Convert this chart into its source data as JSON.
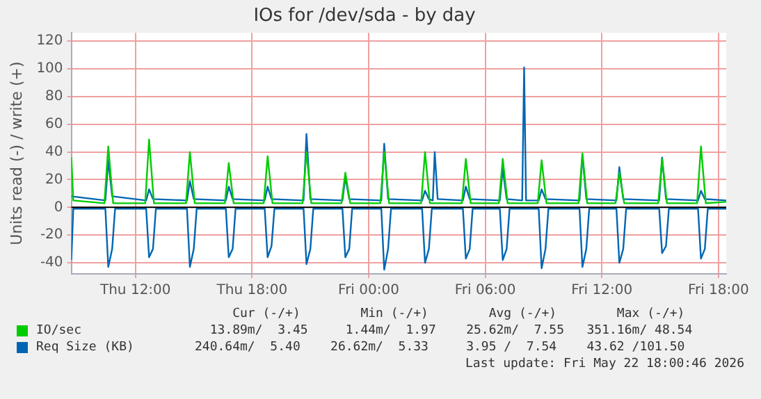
{
  "chart_data": {
    "type": "line",
    "title": "IOs for /dev/sda - by day",
    "ylabel": "Units read (-) / write (+)",
    "xlim": [
      "2026-05-21T08:42",
      "2026-05-22T18:24"
    ],
    "xticks": [
      {
        "value": "2026-05-21T12:00",
        "label": "Thu 12:00"
      },
      {
        "value": "2026-05-21T18:00",
        "label": "Thu 18:00"
      },
      {
        "value": "2026-05-22T00:00",
        "label": "Fri 00:00"
      },
      {
        "value": "2026-05-22T06:00",
        "label": "Fri 06:00"
      },
      {
        "value": "2026-05-22T12:00",
        "label": "Fri 12:00"
      },
      {
        "value": "2026-05-22T18:00",
        "label": "Fri 18:00"
      }
    ],
    "ylim": [
      -48,
      126
    ],
    "yticks": [
      -40,
      -20,
      0,
      20,
      40,
      60,
      80,
      100,
      120
    ],
    "grid": true,
    "legend": "bottom",
    "marker": "none",
    "line_style": "solid",
    "ref_lines": [
      {
        "axis": "y",
        "value": 0,
        "color": "#000000"
      }
    ],
    "series": [
      {
        "name": "IO/sec",
        "color": "#00cc00",
        "x": [
          "2026-05-21T08:42",
          "2026-05-21T08:48",
          "2026-05-21T10:24",
          "2026-05-21T10:36",
          "2026-05-21T10:51",
          "2026-05-21T12:30",
          "2026-05-21T12:42",
          "2026-05-21T12:57",
          "2026-05-21T14:36",
          "2026-05-21T14:48",
          "2026-05-21T15:03",
          "2026-05-21T16:36",
          "2026-05-21T16:48",
          "2026-05-21T17:03",
          "2026-05-21T18:36",
          "2026-05-21T18:48",
          "2026-05-21T19:03",
          "2026-05-21T20:36",
          "2026-05-21T20:48",
          "2026-05-21T21:03",
          "2026-05-21T22:36",
          "2026-05-21T22:48",
          "2026-05-21T23:03",
          "2026-05-22T00:36",
          "2026-05-22T00:48",
          "2026-05-22T01:03",
          "2026-05-22T02:42",
          "2026-05-22T02:54",
          "2026-05-22T03:09",
          "2026-05-22T04:48",
          "2026-05-22T05:00",
          "2026-05-22T05:15",
          "2026-05-22T06:42",
          "2026-05-22T06:54",
          "2026-05-22T07:09",
          "2026-05-22T08:42",
          "2026-05-22T08:54",
          "2026-05-22T09:09",
          "2026-05-22T10:48",
          "2026-05-22T11:00",
          "2026-05-22T11:15",
          "2026-05-22T12:42",
          "2026-05-22T12:54",
          "2026-05-22T13:09",
          "2026-05-22T14:54",
          "2026-05-22T15:06",
          "2026-05-22T15:21",
          "2026-05-22T16:54",
          "2026-05-22T17:06",
          "2026-05-22T17:21",
          "2026-05-22T18:24"
        ],
        "values": [
          36,
          5,
          3,
          44,
          3,
          3,
          49,
          3,
          3,
          40,
          3,
          3,
          32,
          3,
          3,
          37,
          3,
          3,
          40,
          3,
          3,
          25,
          3,
          3,
          40,
          3,
          3,
          40,
          3,
          3,
          35,
          3,
          3,
          35,
          3,
          3,
          34,
          3,
          3,
          39,
          3,
          3,
          25,
          3,
          3,
          35,
          3,
          3,
          44,
          3,
          4
        ]
      },
      {
        "name": "Req Size (KB)",
        "color": "#0066b3",
        "x": [
          "2026-05-21T08:42",
          "2026-05-21T10:27",
          "2026-05-21T10:36",
          "2026-05-21T10:48",
          "2026-05-21T12:33",
          "2026-05-21T12:42",
          "2026-05-21T12:54",
          "2026-05-21T14:39",
          "2026-05-21T14:48",
          "2026-05-21T15:00",
          "2026-05-21T16:39",
          "2026-05-21T16:48",
          "2026-05-21T17:00",
          "2026-05-21T18:39",
          "2026-05-21T18:48",
          "2026-05-21T19:00",
          "2026-05-21T20:39",
          "2026-05-21T20:48",
          "2026-05-21T21:00",
          "2026-05-21T22:39",
          "2026-05-21T22:48",
          "2026-05-21T23:00",
          "2026-05-22T00:39",
          "2026-05-22T00:48",
          "2026-05-22T01:00",
          "2026-05-22T02:45",
          "2026-05-22T02:54",
          "2026-05-22T03:06",
          "2026-05-22T03:18",
          "2026-05-22T03:24",
          "2026-05-22T03:33",
          "2026-05-22T04:51",
          "2026-05-22T05:00",
          "2026-05-22T05:12",
          "2026-05-22T06:45",
          "2026-05-22T06:54",
          "2026-05-22T07:06",
          "2026-05-22T07:54",
          "2026-05-22T08:00",
          "2026-05-22T08:06",
          "2026-05-22T08:45",
          "2026-05-22T08:54",
          "2026-05-22T09:06",
          "2026-05-22T10:51",
          "2026-05-22T11:00",
          "2026-05-22T11:12",
          "2026-05-22T12:45",
          "2026-05-22T12:54",
          "2026-05-22T13:06",
          "2026-05-22T14:57",
          "2026-05-22T15:06",
          "2026-05-22T15:18",
          "2026-05-22T16:57",
          "2026-05-22T17:06",
          "2026-05-22T17:18",
          "2026-05-22T18:24"
        ],
        "values": [
          8,
          5,
          34,
          8,
          5,
          13,
          6,
          5,
          19,
          6,
          5,
          15,
          6,
          5,
          15,
          6,
          5,
          53,
          6,
          5,
          22,
          6,
          5,
          46,
          6,
          5,
          12,
          6,
          5,
          40,
          6,
          5,
          15,
          6,
          5,
          28,
          6,
          5,
          101,
          5,
          5,
          13,
          6,
          5,
          38,
          6,
          5,
          29,
          6,
          5,
          36,
          6,
          5,
          12,
          6,
          5
        ]
      },
      {
        "color": "#0066b3",
        "x": [
          "2026-05-21T08:42",
          "2026-05-21T08:48",
          "2026-05-21T10:27",
          "2026-05-21T10:36",
          "2026-05-21T10:48",
          "2026-05-21T10:57",
          "2026-05-21T12:33",
          "2026-05-21T12:42",
          "2026-05-21T12:54",
          "2026-05-21T13:03",
          "2026-05-21T14:39",
          "2026-05-21T14:48",
          "2026-05-21T15:00",
          "2026-05-21T15:09",
          "2026-05-21T16:39",
          "2026-05-21T16:48",
          "2026-05-21T17:00",
          "2026-05-21T17:09",
          "2026-05-21T18:39",
          "2026-05-21T18:48",
          "2026-05-21T19:00",
          "2026-05-21T19:09",
          "2026-05-21T20:39",
          "2026-05-21T20:48",
          "2026-05-21T21:00",
          "2026-05-21T21:09",
          "2026-05-21T22:39",
          "2026-05-21T22:48",
          "2026-05-21T23:00",
          "2026-05-21T23:09",
          "2026-05-22T00:39",
          "2026-05-22T00:48",
          "2026-05-22T01:00",
          "2026-05-22T01:09",
          "2026-05-22T02:45",
          "2026-05-22T02:54",
          "2026-05-22T03:06",
          "2026-05-22T03:15",
          "2026-05-22T04:51",
          "2026-05-22T05:00",
          "2026-05-22T05:12",
          "2026-05-22T05:21",
          "2026-05-22T06:45",
          "2026-05-22T06:54",
          "2026-05-22T07:06",
          "2026-05-22T07:15",
          "2026-05-22T08:45",
          "2026-05-22T08:54",
          "2026-05-22T09:06",
          "2026-05-22T09:15",
          "2026-05-22T10:51",
          "2026-05-22T11:00",
          "2026-05-22T11:12",
          "2026-05-22T11:21",
          "2026-05-22T12:45",
          "2026-05-22T12:54",
          "2026-05-22T13:06",
          "2026-05-22T13:15",
          "2026-05-22T14:57",
          "2026-05-22T15:06",
          "2026-05-22T15:18",
          "2026-05-22T15:27",
          "2026-05-22T16:57",
          "2026-05-22T17:06",
          "2026-05-22T17:18",
          "2026-05-22T17:27",
          "2026-05-22T18:24"
        ],
        "values": [
          -38,
          -1,
          -1,
          -43,
          -30,
          -1,
          -1,
          -36,
          -30,
          -1,
          -1,
          -43,
          -30,
          -1,
          -1,
          -36,
          -30,
          -1,
          -1,
          -36,
          -28,
          -1,
          -1,
          -41,
          -30,
          -1,
          -1,
          -36,
          -30,
          -1,
          -1,
          -45,
          -30,
          -1,
          -1,
          -40,
          -30,
          -1,
          -1,
          -37,
          -30,
          -1,
          -1,
          -38,
          -30,
          -1,
          -1,
          -44,
          -30,
          -1,
          -1,
          -43,
          -30,
          -1,
          -1,
          -40,
          -30,
          -1,
          -1,
          -33,
          -28,
          -1,
          -1,
          -37,
          -30,
          -1,
          -1
        ]
      }
    ],
    "annotations": [
      "     Cur (-/+)        Min (-/+)        Avg (-/+)        Max (-/+)",
      "  13.89m/  3.45     1.44m/  1.97    25.62m/  7.55   351.16m/ 48.54",
      "240.64m/  5.40    26.62m/  5.33     3.95 /  7.54    43.62 /101.50",
      "Last update: Fri May 22 18:00:46 2026"
    ]
  }
}
